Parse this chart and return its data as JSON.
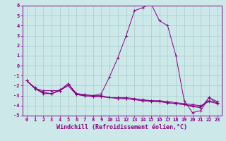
{
  "line1": {
    "x": [
      0,
      1,
      2,
      3,
      4,
      5,
      6,
      7,
      8,
      9,
      10,
      11,
      12,
      13,
      14,
      15,
      16,
      17,
      18,
      19,
      20,
      21,
      22,
      23
    ],
    "y": [
      -1.5,
      -2.3,
      -2.5,
      -2.5,
      -2.5,
      -1.8,
      -2.8,
      -2.9,
      -3.0,
      -2.8,
      -1.1,
      0.8,
      3.0,
      5.5,
      5.8,
      6.2,
      4.5,
      4.0,
      1.0,
      -3.5,
      -4.7,
      -4.5,
      -3.2,
      -3.8
    ]
  },
  "line2": {
    "x": [
      0,
      1,
      2,
      3,
      4,
      5,
      6,
      7,
      8,
      9,
      10,
      11,
      12,
      13,
      14,
      15,
      16,
      17,
      18,
      19,
      20,
      21,
      22,
      23
    ],
    "y": [
      -1.5,
      -2.3,
      -2.8,
      -2.8,
      -2.5,
      -1.8,
      -2.8,
      -2.9,
      -3.0,
      -3.0,
      -3.2,
      -3.2,
      -3.2,
      -3.3,
      -3.4,
      -3.5,
      -3.5,
      -3.6,
      -3.7,
      -3.8,
      -3.9,
      -4.0,
      -3.6,
      -3.8
    ]
  },
  "line3": {
    "x": [
      0,
      1,
      2,
      3,
      4,
      5,
      6,
      7,
      8,
      9,
      10,
      11,
      12,
      13,
      14,
      15,
      16,
      17,
      18,
      19,
      20,
      21,
      22,
      23
    ],
    "y": [
      -1.5,
      -2.2,
      -2.7,
      -2.8,
      -2.5,
      -2.0,
      -2.9,
      -3.0,
      -3.1,
      -3.1,
      -3.2,
      -3.3,
      -3.3,
      -3.4,
      -3.5,
      -3.6,
      -3.6,
      -3.7,
      -3.8,
      -3.9,
      -4.0,
      -4.1,
      -3.5,
      -3.7
    ]
  },
  "line4": {
    "x": [
      0,
      1,
      2,
      3,
      4,
      5,
      6,
      7,
      8,
      9,
      10,
      11,
      12,
      13,
      14,
      15,
      16,
      17,
      18,
      19,
      20,
      21,
      22,
      23
    ],
    "y": [
      -1.5,
      -2.3,
      -2.7,
      -2.8,
      -2.4,
      -2.0,
      -2.9,
      -3.0,
      -3.1,
      -3.1,
      -3.2,
      -3.2,
      -3.3,
      -3.4,
      -3.5,
      -3.5,
      -3.6,
      -3.7,
      -3.8,
      -3.9,
      -4.1,
      -4.2,
      -3.2,
      -3.6
    ]
  },
  "xlim": [
    -0.5,
    23.5
  ],
  "ylim": [
    -5,
    6
  ],
  "yticks": [
    -5,
    -4,
    -3,
    -2,
    -1,
    0,
    1,
    2,
    3,
    4,
    5,
    6
  ],
  "xticks": [
    0,
    1,
    2,
    3,
    4,
    5,
    6,
    7,
    8,
    9,
    10,
    11,
    12,
    13,
    14,
    15,
    16,
    17,
    18,
    19,
    20,
    21,
    22,
    23
  ],
  "xlabel": "Windchill (Refroidissement éolien,°C)",
  "bg_color": "#cce8e8",
  "grid_color": "#aacccc",
  "line_color": "#880088",
  "tick_fontsize": 5.0,
  "label_fontsize": 6.0
}
